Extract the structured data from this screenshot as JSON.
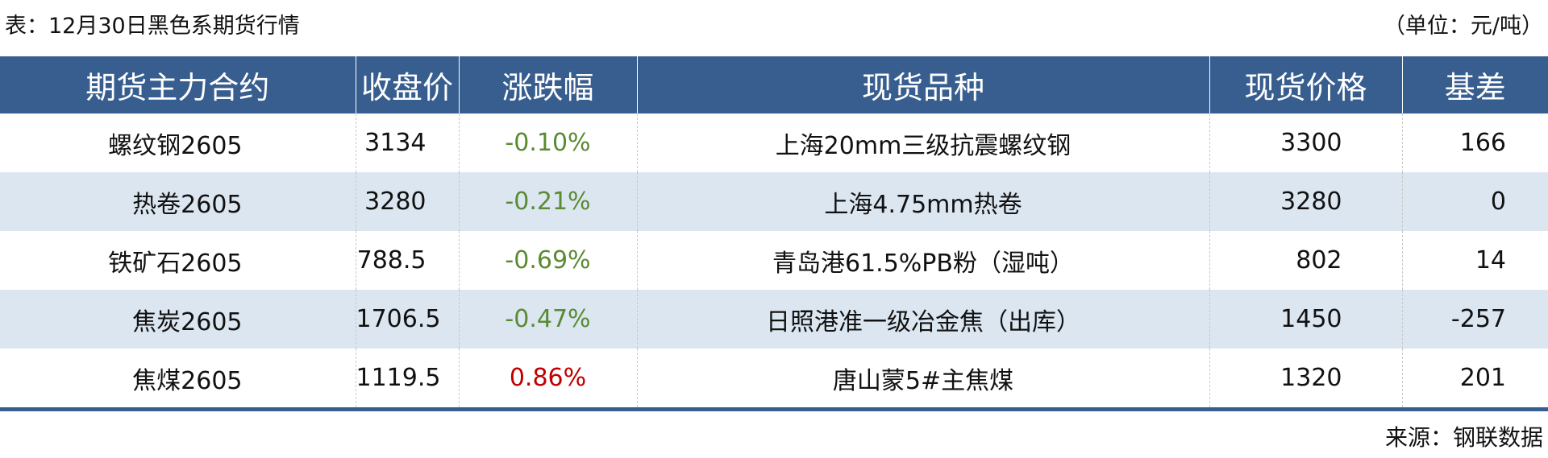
{
  "title": "表：12月30日黑色系期货行情",
  "unit": "（单位：元/吨）",
  "colors": {
    "header_bg": "#375e8e",
    "stripe": "#dce6f1",
    "down": "#5a8a32",
    "up": "#c00000"
  },
  "columns": [
    "期货主力合约",
    "收盘价",
    "涨跌幅",
    "现货品种",
    "现货价格",
    "基差"
  ],
  "rows": [
    {
      "contract": "螺纹钢2605",
      "close": "3134",
      "change": "-0.10%",
      "direction": "down",
      "spot": "上海20mm三级抗震螺纹钢",
      "spot_price": "3300",
      "basis": "166"
    },
    {
      "contract": "热卷2605",
      "close": "3280",
      "change": "-0.21%",
      "direction": "down",
      "spot": "上海4.75mm热卷",
      "spot_price": "3280",
      "basis": "0"
    },
    {
      "contract": "铁矿石2605",
      "close": "788.5",
      "change": "-0.69%",
      "direction": "down",
      "spot": "青岛港61.5%PB粉（湿吨）",
      "spot_price": "802",
      "basis": "14"
    },
    {
      "contract": "焦炭2605",
      "close": "1706.5",
      "change": "-0.47%",
      "direction": "down",
      "spot": "日照港准一级冶金焦（出库）",
      "spot_price": "1450",
      "basis": "-257"
    },
    {
      "contract": "焦煤2605",
      "close": "1119.5",
      "change": "0.86%",
      "direction": "up",
      "spot": "唐山蒙5#主焦煤",
      "spot_price": "1320",
      "basis": "201"
    }
  ],
  "source": "来源：钢联数据"
}
